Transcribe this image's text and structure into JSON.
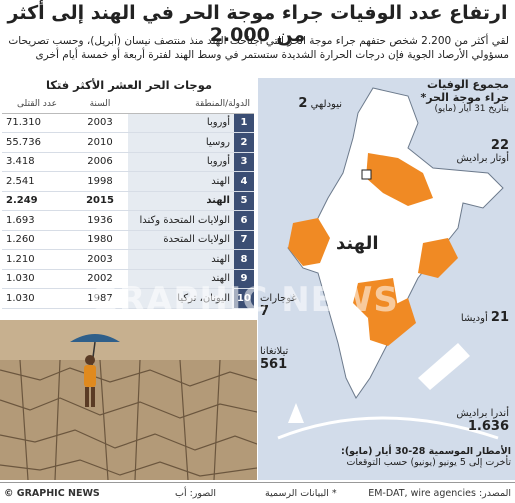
{
  "title": "ارتفاع عدد الوفيات جراء موجة الحر في الهند إلى أكثر من 2.000",
  "intro": "لقي أكثر من 2.200 شخص حتفهم جراء موجة الحر التي اجتاحت الهند منذ منتصف نيسان (أبريل)، وحسب تصريحات مسؤولي الأرصاد الجوية فإن درجات الحرارة الشديدة ستستمر في وسط الهند لفترة أربعة أو خمسة أيام أخرى",
  "table": {
    "title": "موجات الحر العشر الأكثر فتكا",
    "headers": {
      "deaths": "عدد القتلى",
      "year": "السنة",
      "country": "الدولة/المنطقة"
    },
    "rows": [
      {
        "rank": "1",
        "country": "أوروبا",
        "year": "2003",
        "deaths": "71.310"
      },
      {
        "rank": "2",
        "country": "روسيا",
        "year": "2010",
        "deaths": "55.736"
      },
      {
        "rank": "3",
        "country": "أوروبا",
        "year": "2006",
        "deaths": "3.418"
      },
      {
        "rank": "4",
        "country": "الهند",
        "year": "1998",
        "deaths": "2.541"
      },
      {
        "rank": "5",
        "country": "الهند",
        "year": "2015",
        "deaths": "2.249"
      },
      {
        "rank": "6",
        "country": "الولايات المتحدة وكندا",
        "year": "1936",
        "deaths": "1.693"
      },
      {
        "rank": "7",
        "country": "الولايات المتحدة",
        "year": "1980",
        "deaths": "1.260"
      },
      {
        "rank": "8",
        "country": "الهند",
        "year": "2003",
        "deaths": "1.210"
      },
      {
        "rank": "9",
        "country": "الهند",
        "year": "2002",
        "deaths": "1.030"
      },
      {
        "rank": "10",
        "country": "اليونان، تركيا",
        "year": "1987",
        "deaths": "1.030"
      }
    ]
  },
  "map": {
    "heading1": "مجموع الوفيات",
    "heading2": "جراء موجة الحر*",
    "heading3": "بتاريخ 31 أيار (مايو)",
    "country_label": "الهند",
    "regions": [
      {
        "name": "نيودلهي",
        "value": "2"
      },
      {
        "name": "أوتار براديش",
        "value": "22"
      },
      {
        "name": "غوجارات",
        "value": "7"
      },
      {
        "name": "أوديشا",
        "value": "21"
      },
      {
        "name": "تيلانغانا",
        "value": "561"
      },
      {
        "name": "أندرا براديش",
        "value": "1.636"
      }
    ],
    "monsoon_title": "الأمطار الموسمية 28-30 أيار (مايو):",
    "monsoon_text": "تأخرت إلى 5 يونيو (يونيو) حسب التوقعات",
    "highlight_color": "#f08a24",
    "sea_color": "#d2dcea"
  },
  "watermark": "GRAPHIC NEWS",
  "footer": {
    "source": "المصدر: EM-DAT, wire agencies",
    "note": "* البيانات الرسمية",
    "photo": "الصور: أب",
    "brand": "© GRAPHIC NEWS"
  }
}
